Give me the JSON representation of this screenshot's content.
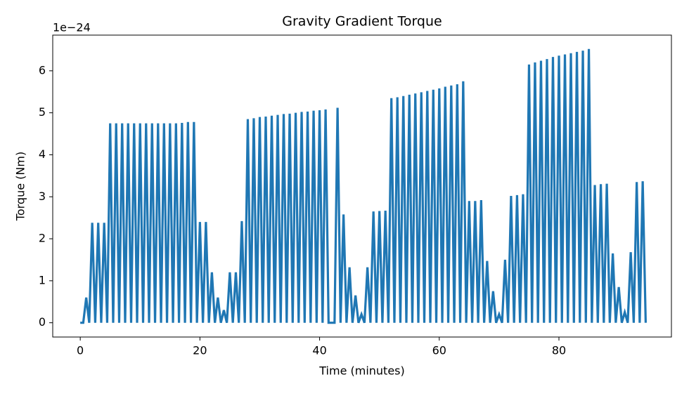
{
  "chart_data": {
    "type": "line",
    "title": "Gravity Gradient Torque",
    "x_label": "Time (minutes)",
    "y_label": "Torque (Nm)",
    "y_offset_text": "1e−24",
    "x": [
      0,
      0.5,
      1,
      1.5,
      2,
      2.5,
      3,
      3.5,
      4,
      4.5,
      5,
      5.5,
      6,
      6.5,
      7,
      7.5,
      8,
      8.5,
      9,
      9.5,
      10,
      10.5,
      11,
      11.5,
      12,
      12.5,
      13,
      13.5,
      14,
      14.5,
      15,
      15.5,
      16,
      16.5,
      17,
      17.5,
      18,
      18.5,
      19,
      19.5,
      20,
      20.5,
      21,
      21.5,
      22,
      22.5,
      23,
      23.5,
      24,
      24.5,
      25,
      25.5,
      26,
      26.5,
      27,
      27.5,
      28,
      28.5,
      29,
      29.5,
      30,
      30.5,
      31,
      31.5,
      32,
      32.5,
      33,
      33.5,
      34,
      34.5,
      35,
      35.5,
      36,
      36.5,
      37,
      37.5,
      38,
      38.5,
      39,
      39.5,
      40,
      40.5,
      41,
      41.5,
      42,
      42.5,
      43,
      43.5,
      44,
      44.5,
      45,
      45.5,
      46,
      46.5,
      47,
      47.5,
      48,
      48.5,
      49,
      49.5,
      50,
      50.5,
      51,
      51.5,
      52,
      52.5,
      53,
      53.5,
      54,
      54.5,
      55,
      55.5,
      56,
      56.5,
      57,
      57.5,
      58,
      58.5,
      59,
      59.5,
      60,
      60.5,
      61,
      61.5,
      62,
      62.5,
      63,
      63.5,
      64,
      64.5,
      65,
      65.5,
      66,
      66.5,
      67,
      67.5,
      68,
      68.5,
      69,
      69.5,
      70,
      70.5,
      71,
      71.5,
      72,
      72.5,
      73,
      73.5,
      74,
      74.5,
      75,
      75.5,
      76,
      76.5,
      77,
      77.5,
      78,
      78.5,
      79,
      79.5,
      80,
      80.5,
      81,
      81.5,
      82,
      82.5,
      83,
      83.5,
      84,
      84.5,
      85,
      85.5,
      86,
      86.5,
      87,
      87.5,
      88,
      88.5,
      89,
      89.5,
      90,
      90.5,
      91,
      91.5,
      92,
      92.5,
      93,
      93.5,
      94,
      94.5
    ],
    "series": [
      {
        "name": "Torque",
        "color": "#1f77b4",
        "values": [
          0,
          0,
          0.6,
          0,
          2.38,
          0,
          2.38,
          0,
          2.38,
          0,
          4.75,
          0,
          4.75,
          0,
          4.75,
          0,
          4.75,
          0,
          4.75,
          0,
          4.75,
          0,
          4.75,
          0,
          4.75,
          0,
          4.75,
          0,
          4.75,
          0,
          4.75,
          0,
          4.75,
          0,
          4.76,
          0,
          4.78,
          0,
          4.78,
          0,
          2.4,
          0,
          2.4,
          0,
          1.2,
          0,
          0.6,
          0,
          0.3,
          0,
          1.2,
          0,
          1.2,
          0,
          2.42,
          0,
          4.85,
          0,
          4.87,
          0,
          4.9,
          0,
          4.91,
          0,
          4.93,
          0,
          4.95,
          0,
          4.97,
          0,
          4.98,
          0,
          5.0,
          0,
          5.02,
          0,
          5.03,
          0,
          5.05,
          0,
          5.06,
          0,
          5.08,
          0,
          0,
          0,
          5.12,
          0,
          2.58,
          0,
          1.32,
          0,
          0.65,
          0,
          0.2,
          0,
          1.32,
          0,
          2.65,
          0,
          2.66,
          0,
          2.67,
          0,
          5.35,
          0,
          5.37,
          0,
          5.4,
          0,
          5.43,
          0,
          5.46,
          0,
          5.49,
          0,
          5.52,
          0,
          5.55,
          0,
          5.58,
          0,
          5.62,
          0,
          5.65,
          0,
          5.68,
          0,
          5.75,
          0,
          2.9,
          0,
          2.9,
          0,
          2.92,
          0,
          1.47,
          0,
          0.75,
          0,
          0.2,
          0,
          1.5,
          0,
          3.02,
          0,
          3.04,
          0,
          3.06,
          0,
          6.15,
          0,
          6.2,
          0,
          6.24,
          0,
          6.28,
          0,
          6.33,
          0,
          6.36,
          0,
          6.39,
          0,
          6.42,
          0,
          6.45,
          0,
          6.48,
          0,
          6.52,
          0,
          3.28,
          0,
          3.3,
          0,
          3.31,
          0,
          1.65,
          0,
          0.85,
          0,
          0.25,
          0,
          1.68,
          0,
          3.35,
          0,
          3.37,
          0
        ]
      }
    ],
    "xlim": [
      -4.6,
      98.8
    ],
    "ylim": [
      -0.34,
      6.85
    ],
    "xticks": [
      0,
      20,
      40,
      60,
      80
    ],
    "yticks": [
      0,
      1,
      2,
      3,
      4,
      5,
      6
    ],
    "grid": false
  }
}
